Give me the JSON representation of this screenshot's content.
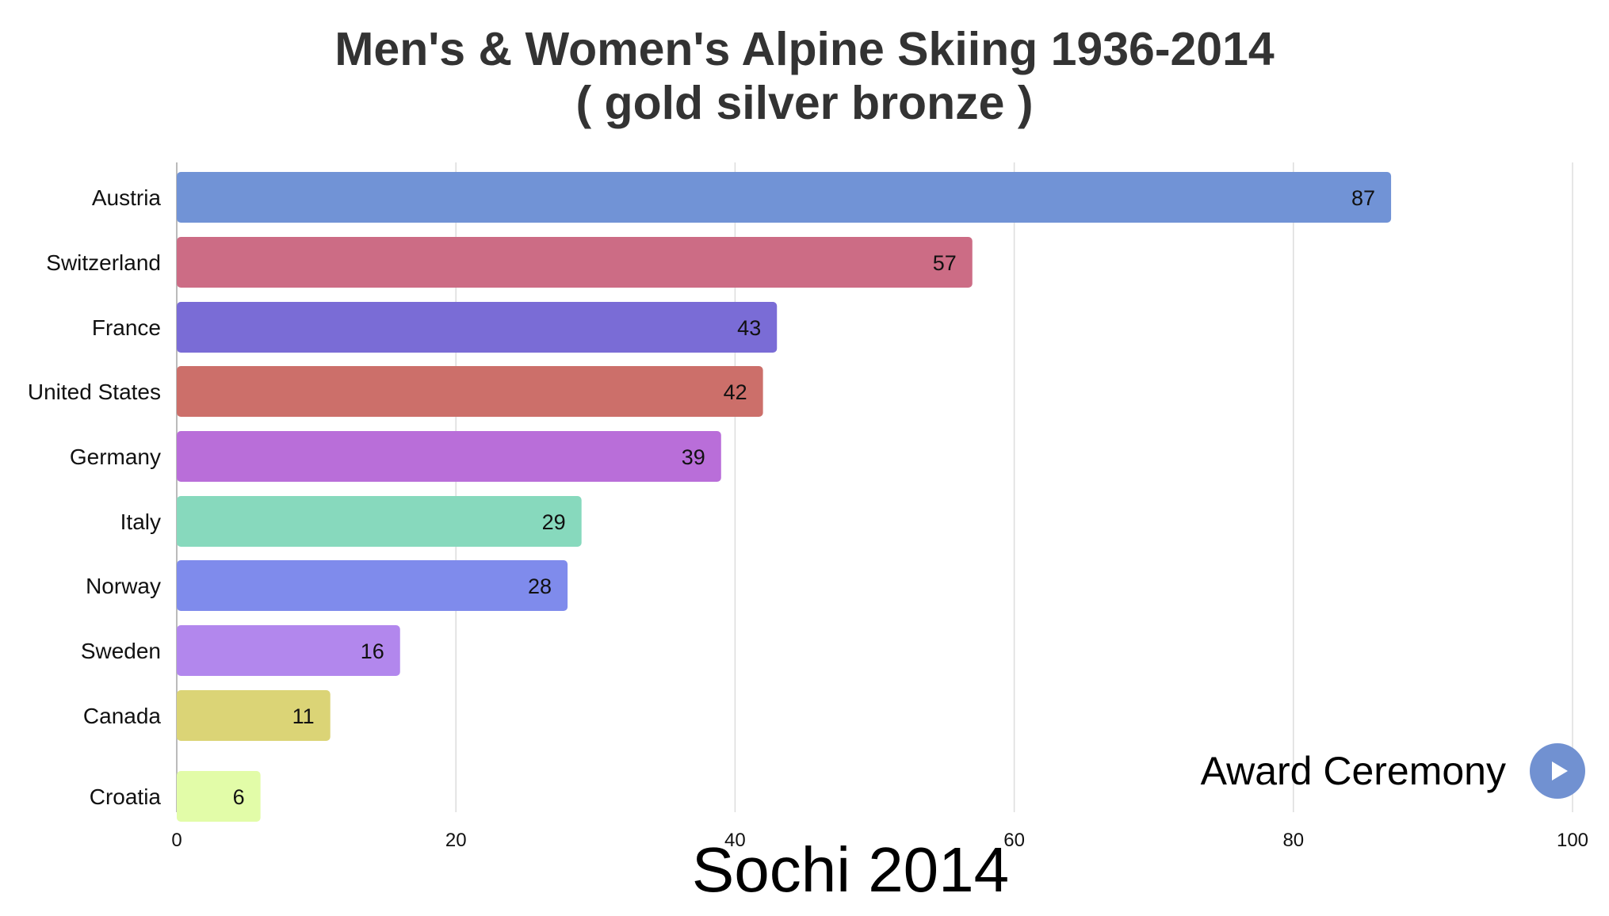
{
  "chart_data": {
    "type": "bar",
    "orientation": "horizontal",
    "title": "Men's & Women's Alpine Skiing 1936-2014",
    "subtitle": "( gold silver bronze )",
    "categories": [
      "Austria",
      "Switzerland",
      "France",
      "United States",
      "Germany",
      "Italy",
      "Norway",
      "Sweden",
      "Canada",
      "Croatia"
    ],
    "values": [
      87,
      57,
      43,
      42,
      39,
      29,
      28,
      16,
      11,
      6
    ],
    "colors": [
      "#7193d6",
      "#cc6c85",
      "#7a6cd6",
      "#cc6f6a",
      "#b96ed9",
      "#87d9bd",
      "#7f8bec",
      "#b287ed",
      "#dbd476",
      "#e2fca8"
    ],
    "xlim": [
      0,
      100
    ],
    "xticks": [
      0,
      20,
      40,
      60,
      80,
      100
    ],
    "grid": true,
    "xlabel": "",
    "ylabel": ""
  },
  "year_label": "Sochi 2014",
  "controls": {
    "award_label": "Award Ceremony",
    "play_icon": "play-icon"
  }
}
